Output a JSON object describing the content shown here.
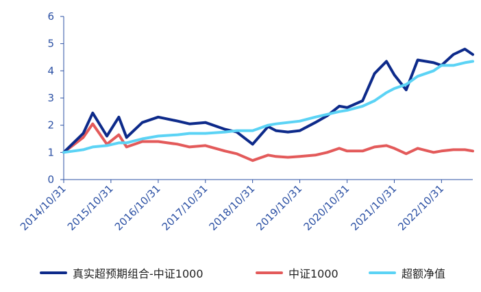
{
  "chart_data": {
    "type": "line",
    "x": [
      "2014/10/31",
      "2015/03/31",
      "2015/06/12",
      "2015/09/30",
      "2015/12/31",
      "2016/02/29",
      "2016/06/30",
      "2016/10/31",
      "2017/03/31",
      "2017/06/30",
      "2017/10/31",
      "2018/03/31",
      "2018/06/30",
      "2018/10/31",
      "2019/02/28",
      "2019/04/30",
      "2019/07/31",
      "2019/10/31",
      "2020/02/28",
      "2020/05/31",
      "2020/08/31",
      "2020/10/31",
      "2021/02/28",
      "2021/05/31",
      "2021/08/31",
      "2021/10/31",
      "2022/01/31",
      "2022/04/30",
      "2022/08/31",
      "2022/10/31",
      "2023/01/31",
      "2023/04/30",
      "2023/06/30"
    ],
    "xticks": [
      "2014/10/31",
      "2015/10/31",
      "2016/10/31",
      "2017/10/31",
      "2018/10/31",
      "2019/10/31",
      "2020/10/31",
      "2021/10/31",
      "2022/10/31"
    ],
    "ylim": [
      0,
      6
    ],
    "yticks": [
      0,
      1,
      2,
      3,
      4,
      5,
      6
    ],
    "grid": false,
    "legend_position": "bottom",
    "series": [
      {
        "name": "真实超预期组合-中证1000",
        "color": "#0d2a8a",
        "values": [
          1.0,
          1.7,
          2.45,
          1.6,
          2.3,
          1.55,
          2.1,
          2.3,
          2.15,
          2.05,
          2.1,
          1.85,
          1.75,
          1.3,
          1.95,
          1.8,
          1.75,
          1.8,
          2.1,
          2.35,
          2.7,
          2.65,
          2.9,
          3.9,
          4.35,
          3.85,
          3.3,
          4.4,
          4.3,
          4.2,
          4.6,
          4.8,
          4.6
        ]
      },
      {
        "name": "中证1000",
        "color": "#e35a5a",
        "values": [
          1.0,
          1.55,
          2.05,
          1.3,
          1.65,
          1.2,
          1.4,
          1.4,
          1.3,
          1.2,
          1.25,
          1.05,
          0.95,
          0.7,
          0.9,
          0.85,
          0.82,
          0.85,
          0.9,
          1.0,
          1.15,
          1.05,
          1.05,
          1.2,
          1.25,
          1.15,
          0.95,
          1.15,
          1.0,
          1.05,
          1.1,
          1.1,
          1.05
        ]
      },
      {
        "name": "超额净值",
        "color": "#5bd3f5",
        "values": [
          1.0,
          1.1,
          1.2,
          1.25,
          1.35,
          1.35,
          1.5,
          1.6,
          1.65,
          1.7,
          1.7,
          1.75,
          1.8,
          1.8,
          2.0,
          2.05,
          2.1,
          2.15,
          2.3,
          2.4,
          2.5,
          2.55,
          2.7,
          2.9,
          3.2,
          3.35,
          3.5,
          3.8,
          4.0,
          4.2,
          4.2,
          4.3,
          4.35
        ]
      }
    ]
  }
}
